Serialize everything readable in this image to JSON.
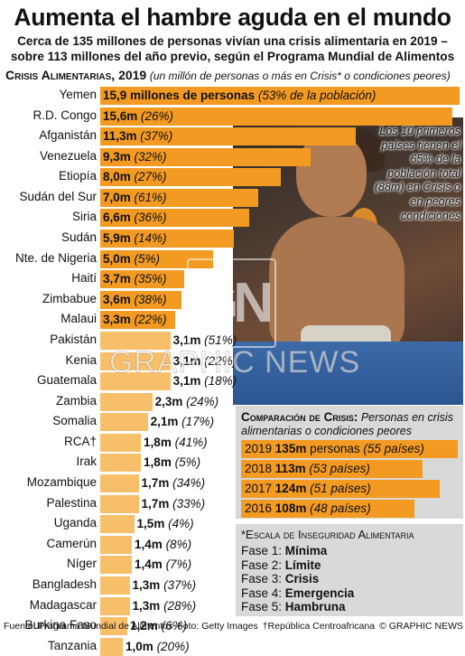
{
  "title": "Aumenta el hambre aguda en el mundo",
  "subtitle": "Cerca de 135 millones de personas vivían una crisis alimentaria en 2019 – sobre 113 millones del año previo, según el Programa Mundial de Alimentos",
  "section": {
    "head": "Crisis Alimentarias, 2019",
    "note": "(un millón de personas o más en Crisis* o condiciones peores)"
  },
  "photo_caption": "Los 10 primeros países tienen el 65% de la población total (88m) en Crisis o en peores condiciones",
  "watermark": {
    "logo": "GN",
    "text": "GRAPHIC NEWS"
  },
  "colors": {
    "bar": "#f39a23",
    "bar_light": "#f8bf6a",
    "box": "#d9d9d9"
  },
  "chart_data": {
    "type": "bar",
    "orientation": "horizontal",
    "categories": [
      "Yemen",
      "R.D. Congo",
      "Afganistán",
      "Venezuela",
      "Etiopía",
      "Sudán del Sur",
      "Siria",
      "Sudán",
      "Nte. de Nigeria",
      "Haití",
      "Zimbabue",
      "Malaui",
      "Pakistán",
      "Kenia",
      "Guatemala",
      "Zambia",
      "Somalia",
      "RCA†",
      "Irak",
      "Mozambique",
      "Palestina",
      "Uganda",
      "Camerún",
      "Níger",
      "Bangladesh",
      "Madagascar",
      "Burkina Faso",
      "Tanzania"
    ],
    "values": [
      15.9,
      15.6,
      11.3,
      9.3,
      8.0,
      7.0,
      6.6,
      5.9,
      5.0,
      3.7,
      3.6,
      3.3,
      3.1,
      3.1,
      3.1,
      2.3,
      2.1,
      1.8,
      1.8,
      1.7,
      1.7,
      1.5,
      1.4,
      1.4,
      1.3,
      1.3,
      1.2,
      1.0
    ],
    "value_labels": [
      "15,9 millones de personas",
      "15,6m",
      "11,3m",
      "9,3m",
      "8,0m",
      "7,0m",
      "6,6m",
      "5,9m",
      "5,0m",
      "3,7m",
      "3,6m",
      "3,3m",
      "3,1m",
      "3,1m",
      "3,1m",
      "2,3m",
      "2,1m",
      "1,8m",
      "1,8m",
      "1,7m",
      "1,7m",
      "1,5m",
      "1,4m",
      "1,4m",
      "1,3m",
      "1,3m",
      "1,2m",
      "1,0m"
    ],
    "share_labels": [
      "(53% de la población)",
      "(26%)",
      "(37%)",
      "(32%)",
      "(27%)",
      "(61%)",
      "(36%)",
      "(14%)",
      "(5%)",
      "(35%)",
      "(38%)",
      "(22%)",
      "(51%)",
      "(22%)",
      "(18%)",
      "(24%)",
      "(17%)",
      "(41%)",
      "(5%)",
      "(34%)",
      "(33%)",
      "(4%)",
      "(8%)",
      "(7%)",
      "(37%)",
      "(28%)",
      "(6%)",
      "(20%)"
    ],
    "top_n_highlighted": 12,
    "xlim": [
      0,
      16
    ]
  },
  "comparison": {
    "head": "Comparación de Crisis:",
    "sub": "Personas en crisis alimentarias o condiciones peores",
    "rows": [
      {
        "year": "2019",
        "value": "135m",
        "unit": "personas",
        "countries": "(55 países)",
        "amount": 135
      },
      {
        "year": "2018",
        "value": "113m",
        "countries": "(53 países)",
        "amount": 113
      },
      {
        "year": "2017",
        "value": "124m",
        "countries": "(51 países)",
        "amount": 124
      },
      {
        "year": "2016",
        "value": "108m",
        "countries": "(48 países)",
        "amount": 108
      }
    ]
  },
  "scale": {
    "title": "*Escala de Inseguridad Alimentaria",
    "rows": [
      {
        "phase": "Fase 1:",
        "level": "Mínima"
      },
      {
        "phase": "Fase 2:",
        "level": "Límite"
      },
      {
        "phase": "Fase 3:",
        "level": "Crisis"
      },
      {
        "phase": "Fase 4:",
        "level": "Emergencia"
      },
      {
        "phase": "Fase 5:",
        "level": "Hambruna"
      }
    ]
  },
  "footer": {
    "source": "Fuente: Programa Mundial de Alimentos",
    "photo": "Foto: Getty Images",
    "note": "†República Centroafricana",
    "credit": "© GRAPHIC NEWS"
  }
}
